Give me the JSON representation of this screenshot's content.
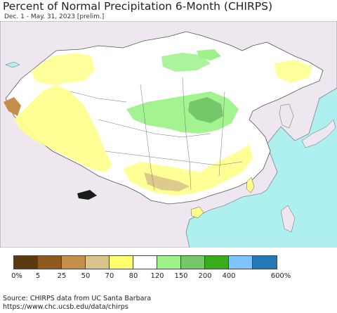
{
  "title": "Percent of Normal Precipitation 6-Month (CHIRPS)",
  "subtitle": "Dec. 1 - May. 31, 2023 [prelim.]",
  "legend": {
    "colors": [
      "#5c3a10",
      "#8f5a1e",
      "#c48f49",
      "#d9c48c",
      "#ffff6e",
      "#ffffff",
      "#9ef28a",
      "#74c86a",
      "#38ad1a",
      "#7fc4ff",
      "#2378b8"
    ],
    "labels": [
      "0%",
      "5",
      "25",
      "50",
      "70",
      "80",
      "120",
      "150",
      "200",
      "400",
      "600%"
    ]
  },
  "colors": {
    "ocean": "#aef0f0",
    "outside_land": "#efe7ef",
    "normal": "#ffffff",
    "dry": "#ffff8a",
    "very_dry": "#d9c48c",
    "wet": "#9ef28a",
    "wetter": "#74c86a"
  },
  "source": {
    "line1": "Source: CHIRPS data from UC Santa Barbara",
    "line2": "https://www.chc.ucsb.edu/data/chirps"
  }
}
